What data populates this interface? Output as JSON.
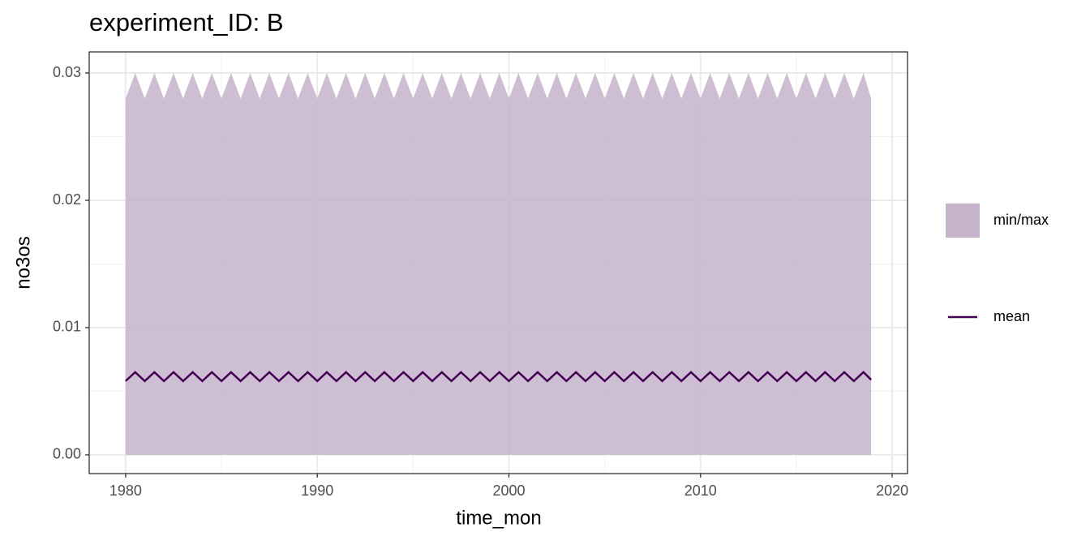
{
  "chart_data": {
    "type": "ribbon-line",
    "title": "experiment_ID: B",
    "x_label": "time_mon",
    "y_label": "no3os",
    "x": [
      1980,
      1980.5,
      1981,
      1981.5,
      1982,
      1982.5,
      1983,
      1983.5,
      1984,
      1984.5,
      1985,
      1985.5,
      1986,
      1986.5,
      1987,
      1987.5,
      1988,
      1988.5,
      1989,
      1989.5,
      1990,
      1990.5,
      1991,
      1991.5,
      1992,
      1992.5,
      1993,
      1993.5,
      1994,
      1994.5,
      1995,
      1995.5,
      1996,
      1996.5,
      1997,
      1997.5,
      1998,
      1998.5,
      1999,
      1999.5,
      2000,
      2000.5,
      2001,
      2001.5,
      2002,
      2002.5,
      2003,
      2003.5,
      2004,
      2004.5,
      2005,
      2005.5,
      2006,
      2006.5,
      2007,
      2007.5,
      2008,
      2008.5,
      2009,
      2009.5,
      2010,
      2010.5,
      2011,
      2011.5,
      2012,
      2012.5,
      2013,
      2013.5,
      2014,
      2014.5,
      2015,
      2015.5,
      2016,
      2016.5,
      2017,
      2017.5,
      2018,
      2018.5,
      2018.9
    ],
    "series": [
      {
        "name": "min/max",
        "color": "#c5b3cc",
        "min": [
          0,
          0,
          0,
          0,
          0,
          0,
          0,
          0,
          0,
          0,
          0,
          0,
          0,
          0,
          0,
          0,
          0,
          0,
          0,
          0,
          0,
          0,
          0,
          0,
          0,
          0,
          0,
          0,
          0,
          0,
          0,
          0,
          0,
          0,
          0,
          0,
          0,
          0,
          0,
          0,
          0,
          0,
          0,
          0,
          0,
          0,
          0,
          0,
          0,
          0,
          0,
          0,
          0,
          0,
          0,
          0,
          0,
          0,
          0,
          0,
          0,
          0,
          0,
          0,
          0,
          0,
          0,
          0,
          0,
          0,
          0,
          0,
          0,
          0,
          0,
          0,
          0,
          0,
          0
        ],
        "max": [
          0.028,
          0.03,
          0.028,
          0.03,
          0.028,
          0.03,
          0.028,
          0.03,
          0.028,
          0.03,
          0.028,
          0.03,
          0.028,
          0.03,
          0.028,
          0.03,
          0.028,
          0.03,
          0.028,
          0.03,
          0.028,
          0.03,
          0.028,
          0.03,
          0.028,
          0.03,
          0.028,
          0.03,
          0.028,
          0.03,
          0.028,
          0.03,
          0.028,
          0.03,
          0.028,
          0.03,
          0.028,
          0.03,
          0.028,
          0.03,
          0.028,
          0.03,
          0.028,
          0.03,
          0.028,
          0.03,
          0.028,
          0.03,
          0.028,
          0.03,
          0.028,
          0.03,
          0.028,
          0.03,
          0.028,
          0.03,
          0.028,
          0.03,
          0.028,
          0.03,
          0.028,
          0.03,
          0.028,
          0.03,
          0.028,
          0.03,
          0.028,
          0.03,
          0.028,
          0.03,
          0.028,
          0.03,
          0.028,
          0.03,
          0.028,
          0.03,
          0.028,
          0.03,
          0.028
        ]
      },
      {
        "name": "mean",
        "color": "#440154",
        "values": [
          0.0058,
          0.0065,
          0.0058,
          0.0065,
          0.0058,
          0.0065,
          0.0058,
          0.0065,
          0.0058,
          0.0065,
          0.0058,
          0.0065,
          0.0058,
          0.0065,
          0.0058,
          0.0065,
          0.0058,
          0.0065,
          0.0058,
          0.0065,
          0.0058,
          0.0065,
          0.0058,
          0.0065,
          0.0058,
          0.0065,
          0.0058,
          0.0065,
          0.0058,
          0.0065,
          0.0058,
          0.0065,
          0.0058,
          0.0065,
          0.0058,
          0.0065,
          0.0058,
          0.0065,
          0.0058,
          0.0065,
          0.0058,
          0.0065,
          0.0058,
          0.0065,
          0.0058,
          0.0065,
          0.0058,
          0.0065,
          0.0058,
          0.0065,
          0.0058,
          0.0065,
          0.0058,
          0.0065,
          0.0058,
          0.0065,
          0.0058,
          0.0065,
          0.0058,
          0.0065,
          0.0058,
          0.0065,
          0.0058,
          0.0065,
          0.0058,
          0.0065,
          0.0058,
          0.0065,
          0.0058,
          0.0065,
          0.0058,
          0.0065,
          0.0058,
          0.0065,
          0.0058,
          0.0065,
          0.0058,
          0.0065,
          0.0059
        ]
      }
    ],
    "xlim": [
      1978.1,
      2020.8
    ],
    "xticks": [
      1980,
      1990,
      2000,
      2010,
      2020
    ],
    "x_minor_ticks": [
      1985,
      1995,
      2005,
      2015
    ],
    "ylim": [
      -0.00147,
      0.03166
    ],
    "yticks": [
      {
        "value": 0,
        "label": "0.00"
      },
      0.01,
      0.02,
      0.03
    ],
    "y_minor_ticks": [
      0.005,
      0.015,
      0.025
    ],
    "grid": true,
    "legend": "right"
  }
}
